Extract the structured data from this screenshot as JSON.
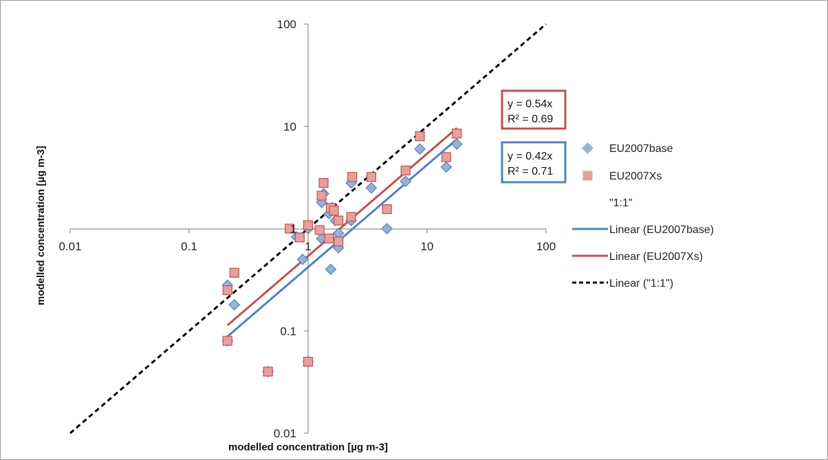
{
  "chart_data": {
    "type": "scatter",
    "x_scale": "log",
    "y_scale": "log",
    "xlim": [
      0.01,
      100
    ],
    "ylim": [
      0.01,
      100
    ],
    "x_ticks": [
      "0.01",
      "0.1",
      "1",
      "10",
      "100"
    ],
    "y_ticks": [
      "0.01",
      "0.1",
      "1",
      "10",
      "100"
    ],
    "xlabel": "modelled concentration [µg m-3]",
    "ylabel": "modelled concentration [µg m-3]",
    "grid": false,
    "legend_position": "right",
    "series": [
      {
        "name": "EU2007base",
        "color": "#4f81bd",
        "marker": "diamond",
        "points": [
          {
            "x": 0.21,
            "y": 0.28
          },
          {
            "x": 0.24,
            "y": 0.18
          },
          {
            "x": 0.21,
            "y": 0.08
          },
          {
            "x": 0.46,
            "y": 0.04
          },
          {
            "x": 0.8,
            "y": 0.83
          },
          {
            "x": 0.9,
            "y": 0.5
          },
          {
            "x": 1.0,
            "y": 1.0
          },
          {
            "x": 1.0,
            "y": 0.05
          },
          {
            "x": 1.3,
            "y": 0.8
          },
          {
            "x": 1.3,
            "y": 1.8
          },
          {
            "x": 1.35,
            "y": 2.2
          },
          {
            "x": 1.5,
            "y": 1.4
          },
          {
            "x": 1.55,
            "y": 0.4
          },
          {
            "x": 1.6,
            "y": 1.6
          },
          {
            "x": 1.7,
            "y": 1.2
          },
          {
            "x": 1.8,
            "y": 0.9
          },
          {
            "x": 1.8,
            "y": 0.65
          },
          {
            "x": 2.3,
            "y": 1.2
          },
          {
            "x": 2.3,
            "y": 2.8
          },
          {
            "x": 3.4,
            "y": 2.5
          },
          {
            "x": 4.6,
            "y": 1.0
          },
          {
            "x": 6.6,
            "y": 2.9
          },
          {
            "x": 8.7,
            "y": 6.0
          },
          {
            "x": 14.5,
            "y": 4.0
          },
          {
            "x": 17.8,
            "y": 6.7
          }
        ]
      },
      {
        "name": "EU2007Xs",
        "color": "#c0504d",
        "marker": "square",
        "points": [
          {
            "x": 0.21,
            "y": 0.25
          },
          {
            "x": 0.24,
            "y": 0.37
          },
          {
            "x": 0.21,
            "y": 0.08
          },
          {
            "x": 0.46,
            "y": 0.04
          },
          {
            "x": 0.7,
            "y": 1.0
          },
          {
            "x": 0.85,
            "y": 0.82
          },
          {
            "x": 1.0,
            "y": 1.08
          },
          {
            "x": 1.0,
            "y": 0.05
          },
          {
            "x": 1.25,
            "y": 0.97
          },
          {
            "x": 1.3,
            "y": 2.1
          },
          {
            "x": 1.35,
            "y": 2.8
          },
          {
            "x": 1.5,
            "y": 0.8
          },
          {
            "x": 1.55,
            "y": 1.6
          },
          {
            "x": 1.65,
            "y": 1.5
          },
          {
            "x": 1.8,
            "y": 1.2
          },
          {
            "x": 1.8,
            "y": 0.75
          },
          {
            "x": 2.3,
            "y": 1.3
          },
          {
            "x": 2.35,
            "y": 3.2
          },
          {
            "x": 3.4,
            "y": 3.2
          },
          {
            "x": 4.6,
            "y": 1.55
          },
          {
            "x": 6.6,
            "y": 3.7
          },
          {
            "x": 8.7,
            "y": 8.0
          },
          {
            "x": 14.5,
            "y": 5.0
          },
          {
            "x": 17.8,
            "y": 8.5
          }
        ]
      },
      {
        "name": "\"1:1\"",
        "color": "#000000",
        "marker": "none",
        "points": []
      }
    ],
    "trendlines": [
      {
        "name": "Linear (EU2007base)",
        "color": "#4f81bd",
        "style": "solid",
        "slope": 0.42,
        "x_range": [
          0.21,
          17.8
        ],
        "equation": "y = 0.42x",
        "r2": "R² = 0.71"
      },
      {
        "name": "Linear (EU2007Xs)",
        "color": "#c0504d",
        "style": "solid",
        "slope": 0.54,
        "x_range": [
          0.21,
          17.8
        ],
        "equation": "y = 0.54x",
        "r2": "R² = 0.69"
      },
      {
        "name": "Linear (\"1:1\")",
        "color": "#000000",
        "style": "dashed",
        "slope": 1.0,
        "x_range": [
          0.01,
          100
        ]
      }
    ]
  }
}
